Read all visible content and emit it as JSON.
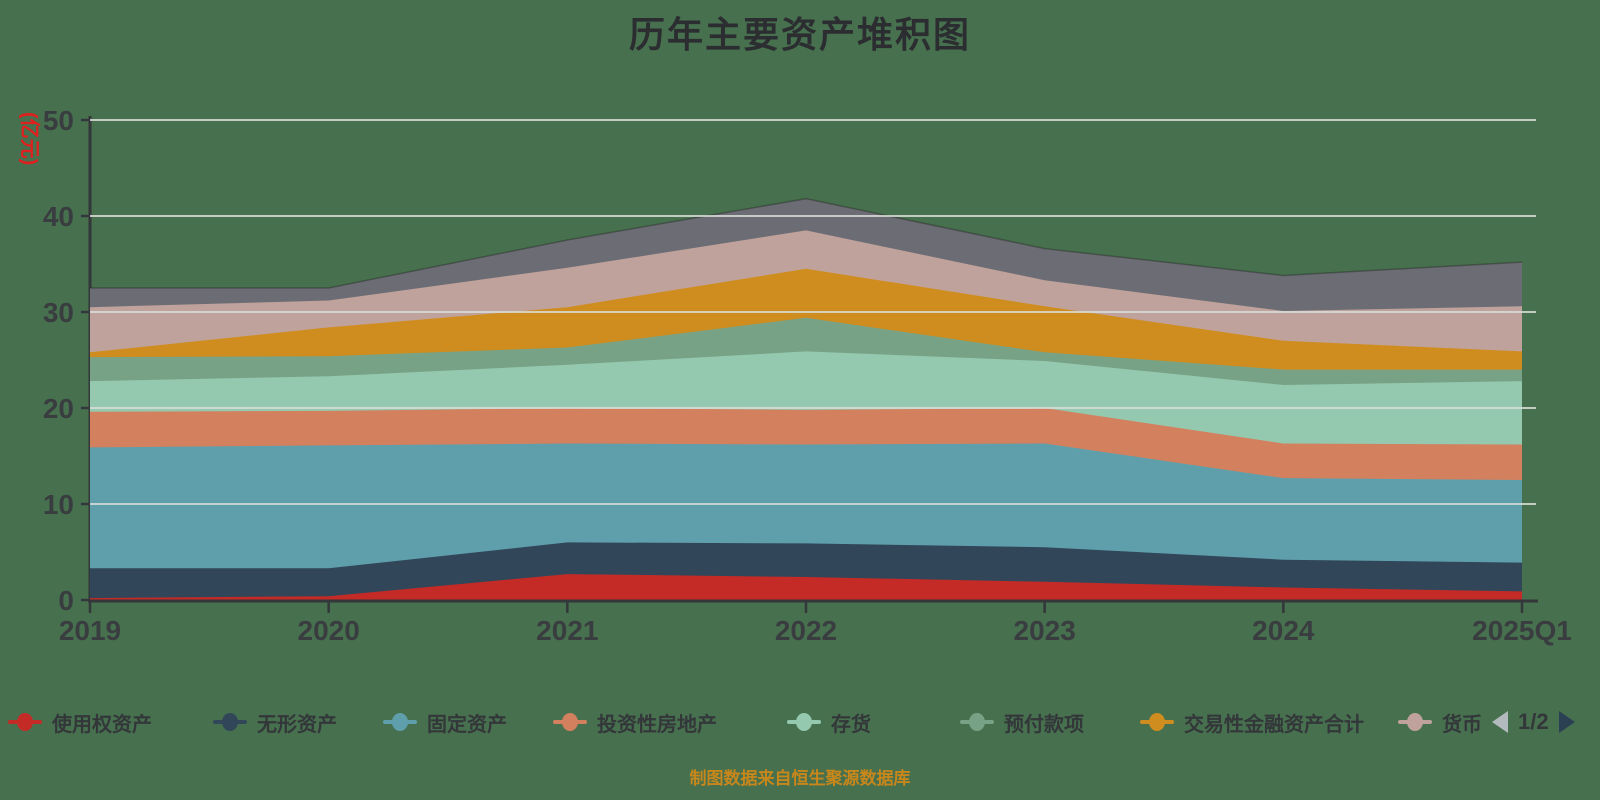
{
  "title": "历年主要资产堆积图",
  "caption": "制图数据来自恒生聚源数据库",
  "colors": {
    "background": "#47704e",
    "axis_line": "#33373a",
    "axis_text": "#3a3d40",
    "grid_line": "#d7dcd7",
    "title_text": "#2b2d31",
    "caption_text": "#c8871b",
    "y_axis_name_text": "#e01f1f",
    "legend_text": "#33373a",
    "pager_prev": "#b3babd",
    "pager_next": "#2c4054"
  },
  "legend": {
    "page_indicator": "1/2",
    "prev_icon": "left-triangle",
    "next_icon": "right-triangle"
  },
  "chart_data": {
    "type": "area",
    "stacked": true,
    "title": "历年主要资产堆积图",
    "categories": [
      "2019",
      "2020",
      "2021",
      "2022",
      "2023",
      "2024",
      "2025Q1"
    ],
    "x_axis": {
      "type": "category",
      "boundary_gap": false
    },
    "y_axis": {
      "name": "(亿元)",
      "min": 0,
      "max": 50,
      "interval": 10
    },
    "grid": true,
    "legend_position": "bottom",
    "series": [
      {
        "name": "使用权资产",
        "color": "#c52b26",
        "in_legend": true,
        "values": [
          0.2,
          0.4,
          2.7,
          2.4,
          1.9,
          1.3,
          0.9
        ]
      },
      {
        "name": "无形资产",
        "color": "#314659",
        "in_legend": true,
        "values": [
          3.1,
          2.9,
          3.3,
          3.5,
          3.6,
          2.9,
          3.0
        ]
      },
      {
        "name": "固定资产",
        "color": "#5f9fab",
        "in_legend": true,
        "values": [
          12.6,
          12.8,
          10.3,
          10.3,
          10.8,
          8.5,
          8.6
        ]
      },
      {
        "name": "投资性房地产",
        "color": "#d3805f",
        "in_legend": true,
        "values": [
          3.7,
          3.6,
          3.7,
          3.6,
          3.7,
          3.6,
          3.7
        ]
      },
      {
        "name": "存货",
        "color": "#94c9af",
        "in_legend": true,
        "values": [
          3.2,
          3.6,
          4.5,
          6.1,
          4.9,
          6.1,
          6.6
        ]
      },
      {
        "name": "预付款项",
        "color": "#78a285",
        "in_legend": true,
        "values": [
          2.5,
          2.1,
          1.8,
          3.5,
          0.9,
          1.6,
          1.2
        ]
      },
      {
        "name": "交易性金融资产合计",
        "color": "#d08d1f",
        "in_legend": true,
        "values": [
          0.5,
          3.0,
          4.2,
          5.1,
          4.8,
          3.0,
          1.9
        ]
      },
      {
        "name": "货币",
        "color": "#bfa29b",
        "in_legend": true,
        "values": [
          4.7,
          2.8,
          4.1,
          4.0,
          2.7,
          3.1,
          4.7
        ]
      },
      {
        "name": "",
        "color": "#6c6d74",
        "in_legend": false,
        "values": [
          2.0,
          1.3,
          2.9,
          3.3,
          3.3,
          3.7,
          4.6
        ]
      }
    ],
    "totals": [
      32.5,
      32.5,
      37.5,
      41.8,
      36.6,
      33.8,
      35.2
    ]
  }
}
